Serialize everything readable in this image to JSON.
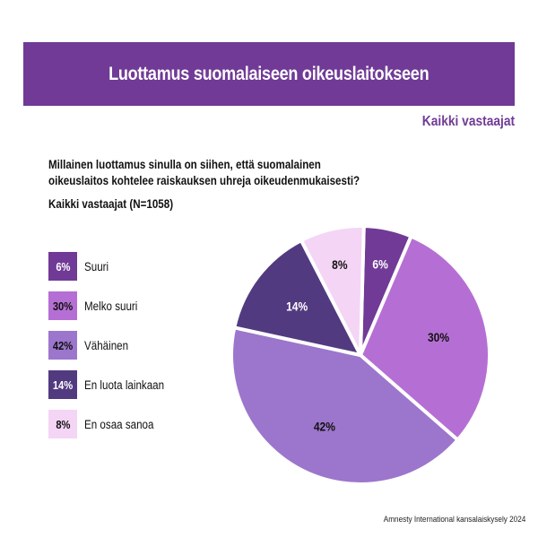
{
  "header": {
    "title": "Luottamus suomalaiseen oikeuslaitokseen",
    "subtitle": "Kaikki vastaajat"
  },
  "question": {
    "line1": "Millainen luottamus sinulla on siihen, että suomalainen",
    "line2": "oikeuslaitos kohtelee raiskauksen uhreja oikeudenmukaisesti?",
    "sample": "Kaikki vastaajat (N=1058)"
  },
  "legend": [
    {
      "pct": "6%",
      "label": "Suuri",
      "color": "#703A96",
      "text_color": "#ffffff"
    },
    {
      "pct": "30%",
      "label": "Melko suuri",
      "color": "#B56FD4",
      "text_color": "#111111"
    },
    {
      "pct": "42%",
      "label": "Vähäinen",
      "color": "#9C76CC",
      "text_color": "#111111"
    },
    {
      "pct": "14%",
      "label": "En luota lainkaan",
      "color": "#523A80",
      "text_color": "#ffffff"
    },
    {
      "pct": "8%",
      "label": "En osaa sanoa",
      "color": "#F4D5F5",
      "text_color": "#111111"
    }
  ],
  "source": "Amnesty International kansalaiskysely 2024",
  "chart_data": {
    "type": "pie",
    "title": "Luottamus suomalaiseen oikeuslaitokseen",
    "subtitle": "Millainen luottamus sinulla on siihen, että suomalainen oikeuslaitos kohtelee raiskauksen uhreja oikeudenmukaisesti?",
    "categories": [
      "Suuri",
      "Melko suuri",
      "Vähäinen",
      "En luota lainkaan",
      "En osaa sanoa"
    ],
    "values": [
      6,
      30,
      42,
      14,
      8
    ],
    "unit": "%",
    "colors": [
      "#703A96",
      "#B56FD4",
      "#9C76CC",
      "#523A80",
      "#F4D5F5"
    ],
    "data_labels": [
      "6%",
      "30%",
      "42%",
      "14%",
      "8%"
    ],
    "sample": "Kaikki vastaajat (N=1058)",
    "legend_position": "left"
  }
}
